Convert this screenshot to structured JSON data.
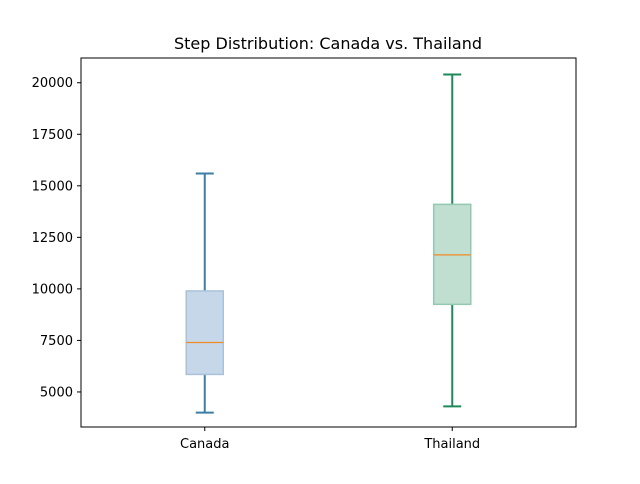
{
  "chart_data": {
    "type": "boxplot",
    "title": "Step Distribution: Canada vs. Thailand",
    "xlabel": "",
    "ylabel": "",
    "categories": [
      "Canada",
      "Thailand"
    ],
    "ylim": [
      3300,
      21200
    ],
    "yticks": [
      5000,
      7500,
      10000,
      12500,
      15000,
      17500,
      20000
    ],
    "grid": false,
    "series": [
      {
        "category": "Canada",
        "whisker_low": 4000,
        "q1": 5850,
        "median": 7400,
        "q3": 9900,
        "whisker_high": 15600,
        "box_fill": "#c6d7e9",
        "box_edge": "#a9c2da",
        "whisker_color": "#3e7ea6",
        "median_color": "#f08a24"
      },
      {
        "category": "Thailand",
        "whisker_low": 4300,
        "q1": 9250,
        "median": 11650,
        "q3": 14100,
        "whisker_high": 20400,
        "box_fill": "#c0dfd1",
        "box_edge": "#93c9ae",
        "whisker_color": "#1e8a5a",
        "median_color": "#f08a24"
      }
    ]
  }
}
